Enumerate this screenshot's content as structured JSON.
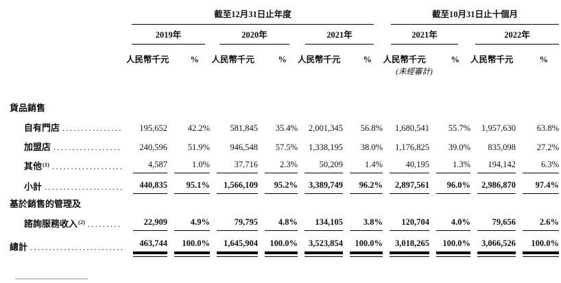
{
  "header": {
    "group1_title": "截至12月31日止年度",
    "group2_title": "截至10月31日止十個月",
    "years": [
      "2019年",
      "2020年",
      "2021年",
      "2021年",
      "2022年"
    ],
    "amount_unit": "人民幣千元",
    "percent_sign": "%",
    "unaudited_note": "(未經審計)"
  },
  "rows": {
    "goods_sales_header": "貨品銷售",
    "own_stores": {
      "label": "自有門店",
      "values": [
        "195,652",
        "42.2%",
        "581,845",
        "35.4%",
        "2,001,345",
        "56.8%",
        "1,680,541",
        "55.7%",
        "1,957,630",
        "63.8%"
      ]
    },
    "franchise_stores": {
      "label": "加盟店",
      "values": [
        "240,596",
        "51.9%",
        "946,548",
        "57.5%",
        "1,338,195",
        "38.0%",
        "1,176,825",
        "39.0%",
        "835,098",
        "27.2%"
      ]
    },
    "others": {
      "label": "其他",
      "footnote_ref": "(1)",
      "values": [
        "4,587",
        "1.0%",
        "37,716",
        "2.3%",
        "50,209",
        "1.4%",
        "40,195",
        "1.3%",
        "194,142",
        "6.3%"
      ]
    },
    "subtotal": {
      "label": "小計",
      "values": [
        "440,835",
        "95.1%",
        "1,566,109",
        "95.2%",
        "3,389,749",
        "96.2%",
        "2,897,561",
        "96.0%",
        "2,986,870",
        "97.4%"
      ]
    },
    "mgmt_header_line1": "基於銷售的管理及",
    "consulting": {
      "label": "諮詢服務收入",
      "footnote_ref": "(2)",
      "values": [
        "22,909",
        "4.9%",
        "79,795",
        "4.8%",
        "134,105",
        "3.8%",
        "120,704",
        "4.0%",
        "79,656",
        "2.6%"
      ]
    },
    "total": {
      "label": "總計",
      "values": [
        "463,744",
        "100.0%",
        "1,645,904",
        "100.0%",
        "3,523,854",
        "100.0%",
        "3,018,265",
        "100.0%",
        "3,066,526",
        "100.0%"
      ]
    }
  },
  "colors": {
    "text": "#101010",
    "rule": "#000000",
    "footnote_rule": "#c6c6c6"
  }
}
